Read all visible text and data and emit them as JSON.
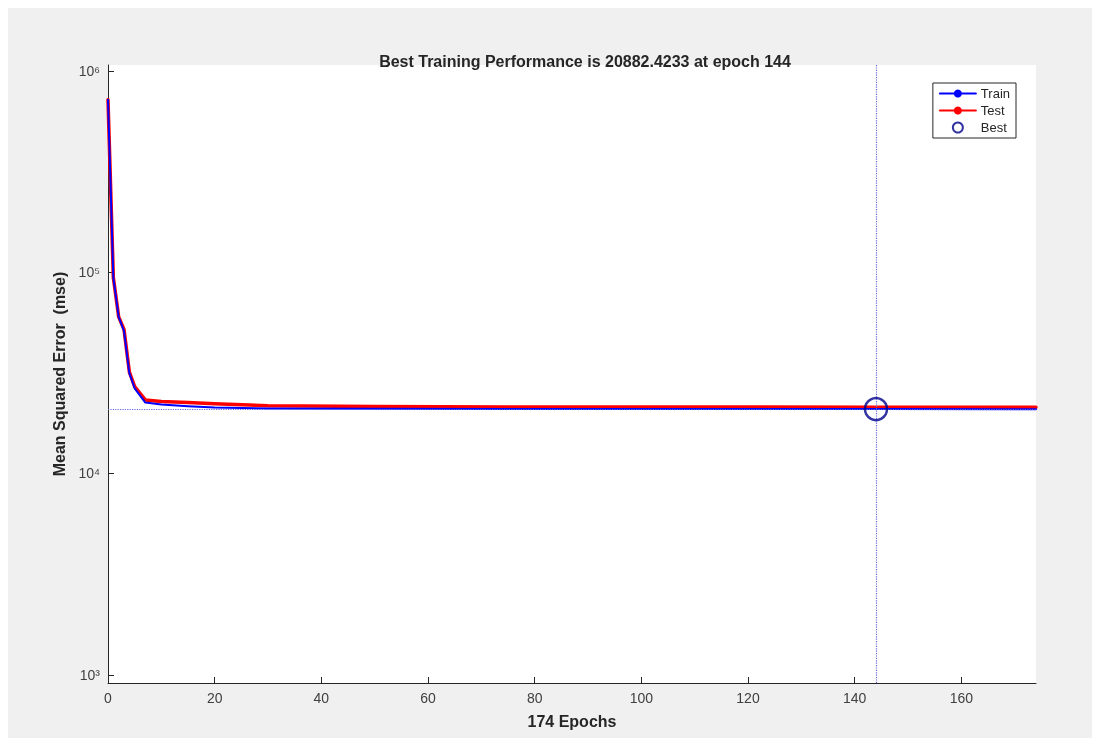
{
  "chart_data": {
    "type": "line",
    "title": "Best Training Performance is 20882.4233 at epoch 144",
    "xlabel": "174 Epochs",
    "ylabel": "Mean Squared Error  (mse)",
    "log": "y",
    "xlim": [
      0,
      174
    ],
    "xticks": [
      0,
      20,
      40,
      60,
      80,
      100,
      120,
      140,
      160
    ],
    "ylim": [
      910,
      1070000
    ],
    "yticks": [
      {
        "value": 1000,
        "label": "10³"
      },
      {
        "value": 10000,
        "label": "10⁴"
      },
      {
        "value": 100000,
        "label": "10⁵"
      },
      {
        "value": 1000000,
        "label": "10⁶"
      }
    ],
    "grid": false,
    "legend": "top right",
    "series": [
      {
        "name": "Train",
        "color": "#0000ff",
        "x": [
          0,
          1,
          2,
          3,
          4,
          5,
          7,
          10,
          15,
          20,
          30,
          50,
          75,
          100,
          144,
          174
        ],
        "values": [
          720000,
          94000,
          60000,
          51000,
          31500,
          26500,
          22500,
          22000,
          21600,
          21300,
          21000,
          20950,
          20900,
          20890,
          20882.4233,
          20870
        ]
      },
      {
        "name": "Test",
        "color": "#ff0000",
        "x": [
          0,
          1,
          2,
          3,
          4,
          5,
          7,
          10,
          15,
          20,
          30,
          50,
          75,
          100,
          144,
          174
        ],
        "values": [
          720000,
          94000,
          60000,
          52000,
          32000,
          27000,
          23200,
          22800,
          22500,
          22200,
          21700,
          21500,
          21400,
          21400,
          21350,
          21350
        ]
      },
      {
        "name": "Best",
        "type": "scatter",
        "marker": "circle",
        "color": "#00008b",
        "x": [
          144
        ],
        "values": [
          20882.4233
        ]
      }
    ],
    "ref_lines": [
      {
        "axis": "x",
        "value": 144,
        "label": null,
        "color": "#6666dd",
        "line_style": "dotted"
      },
      {
        "axis": "y",
        "value": 20882.4233,
        "label": null,
        "color": "#6666dd",
        "line_style": "dotted"
      }
    ]
  }
}
